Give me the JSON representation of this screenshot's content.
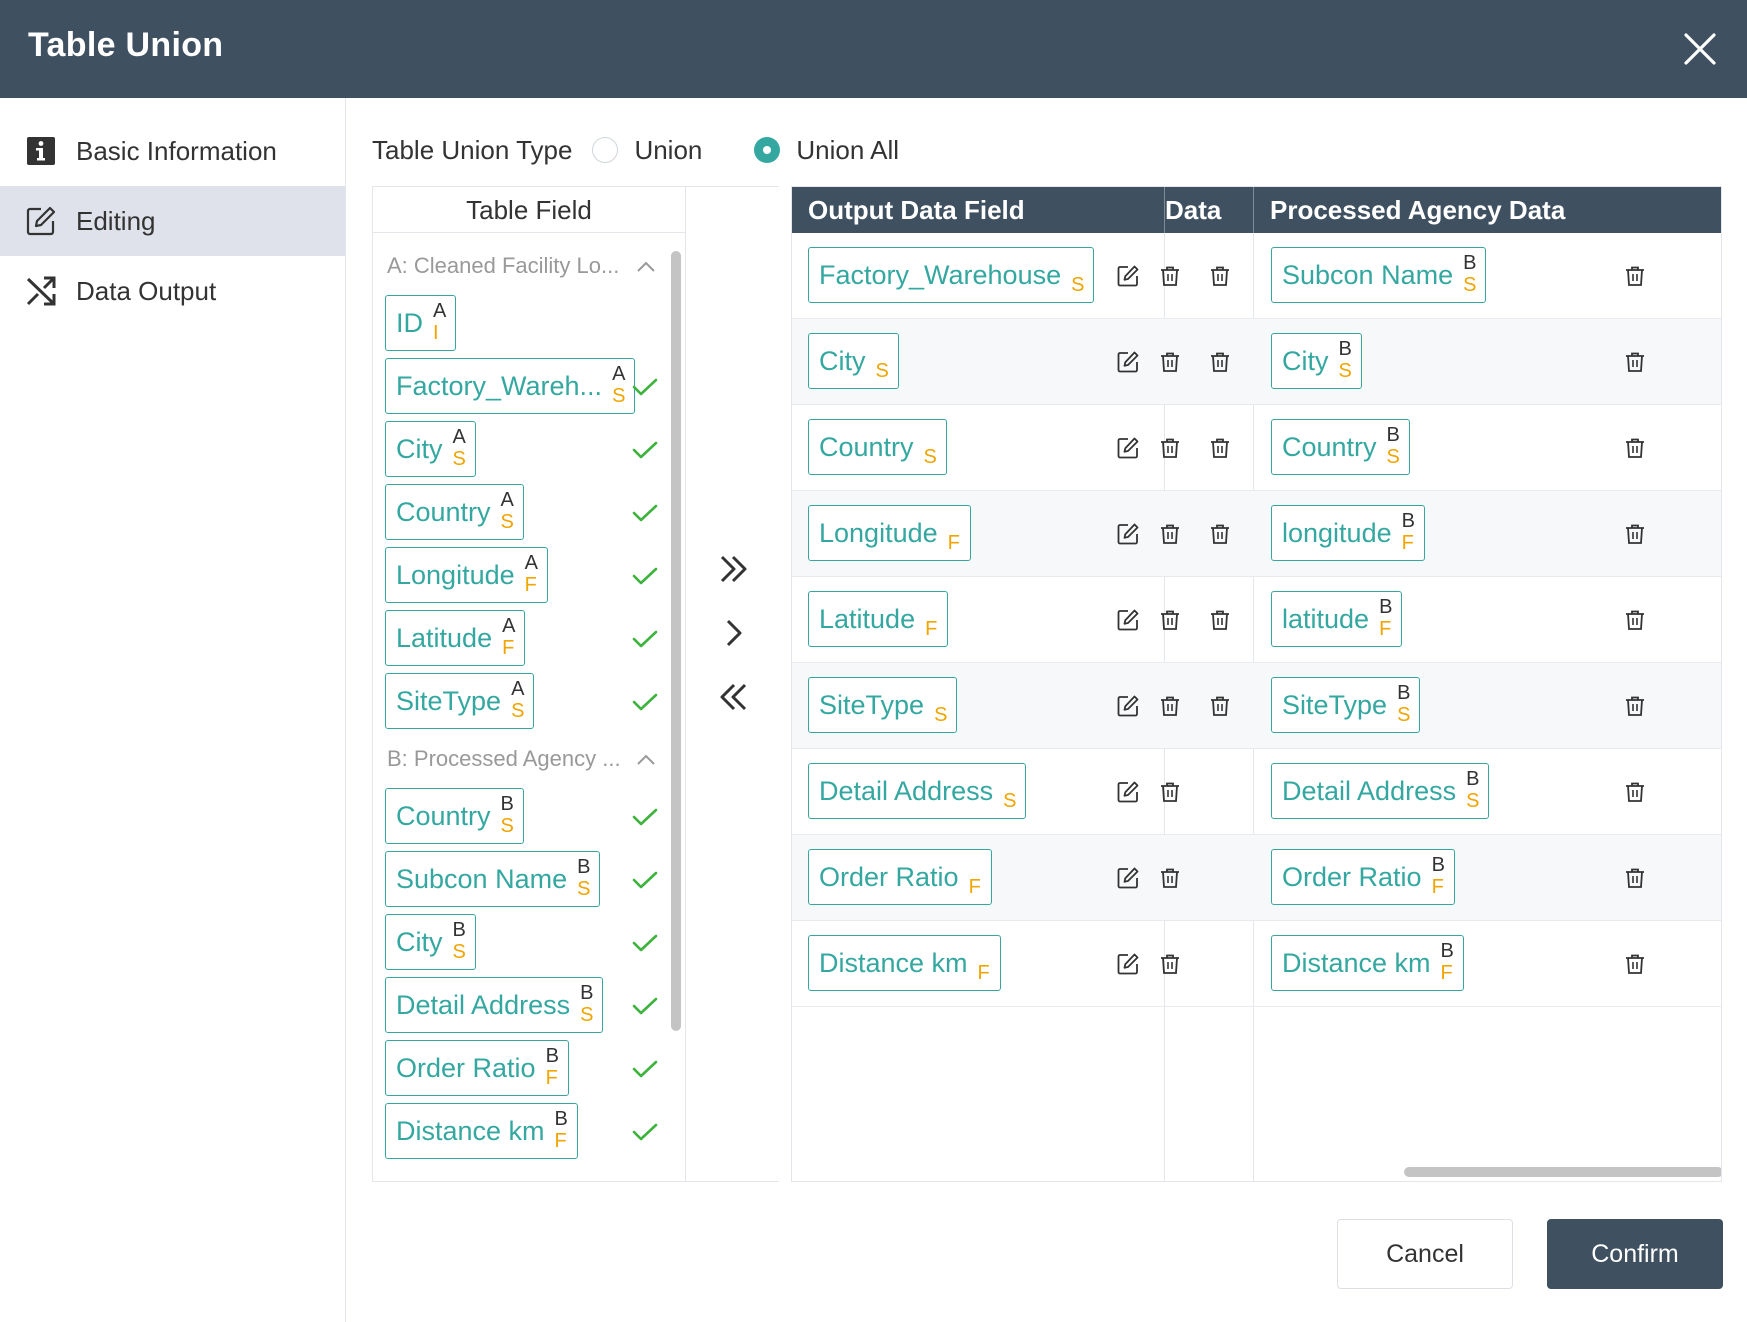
{
  "dialog": {
    "title": "Table Union",
    "close_icon": "close-icon"
  },
  "sidebar": {
    "items": [
      {
        "label": "Basic Information",
        "icon": "info-icon",
        "active": false
      },
      {
        "label": "Editing",
        "icon": "edit-icon",
        "active": true
      },
      {
        "label": "Data Output",
        "icon": "shuffle-icon",
        "active": false
      }
    ]
  },
  "union_type": {
    "label": "Table Union Type",
    "options": [
      {
        "label": "Union",
        "checked": false
      },
      {
        "label": "Union All",
        "checked": true
      }
    ]
  },
  "table_field": {
    "header": "Table Field",
    "groups": [
      {
        "title": "A: Cleaned Facility Lo...",
        "fields": [
          {
            "name": "ID",
            "src": "A",
            "type": "I",
            "checked": false
          },
          {
            "name": "Factory_Wareh...",
            "src": "A",
            "type": "S",
            "checked": true
          },
          {
            "name": "City",
            "src": "A",
            "type": "S",
            "checked": true
          },
          {
            "name": "Country",
            "src": "A",
            "type": "S",
            "checked": true
          },
          {
            "name": "Longitude",
            "src": "A",
            "type": "F",
            "checked": true
          },
          {
            "name": "Latitude",
            "src": "A",
            "type": "F",
            "checked": true
          },
          {
            "name": "SiteType",
            "src": "A",
            "type": "S",
            "checked": true
          }
        ]
      },
      {
        "title": "B: Processed Agency ...",
        "fields": [
          {
            "name": "Country",
            "src": "B",
            "type": "S",
            "checked": true
          },
          {
            "name": "Subcon Name",
            "src": "B",
            "type": "S",
            "checked": true
          },
          {
            "name": "City",
            "src": "B",
            "type": "S",
            "checked": true
          },
          {
            "name": "Detail Address",
            "src": "B",
            "type": "S",
            "checked": true
          },
          {
            "name": "Order Ratio",
            "src": "B",
            "type": "F",
            "checked": true
          },
          {
            "name": "Distance km",
            "src": "B",
            "type": "F",
            "checked": true
          }
        ]
      }
    ]
  },
  "move_buttons": [
    "move-all-right-icon",
    "move-right-icon",
    "move-all-left-icon"
  ],
  "output": {
    "headers": [
      "Output Data Field",
      "Data",
      "Processed Agency Data"
    ],
    "rows": [
      {
        "out": {
          "name": "Factory_Warehouse",
          "type": "S"
        },
        "mid_delete": true,
        "b": {
          "name": "Subcon Name",
          "src": "B",
          "type": "S"
        }
      },
      {
        "out": {
          "name": "City",
          "type": "S"
        },
        "mid_delete": true,
        "b": {
          "name": "City",
          "src": "B",
          "type": "S"
        }
      },
      {
        "out": {
          "name": "Country",
          "type": "S"
        },
        "mid_delete": true,
        "b": {
          "name": "Country",
          "src": "B",
          "type": "S"
        }
      },
      {
        "out": {
          "name": "Longitude",
          "type": "F"
        },
        "mid_delete": true,
        "b": {
          "name": "longitude",
          "src": "B",
          "type": "F"
        }
      },
      {
        "out": {
          "name": "Latitude",
          "type": "F"
        },
        "mid_delete": true,
        "b": {
          "name": "latitude",
          "src": "B",
          "type": "F"
        }
      },
      {
        "out": {
          "name": "SiteType",
          "type": "S"
        },
        "mid_delete": true,
        "b": {
          "name": "SiteType",
          "src": "B",
          "type": "S"
        }
      },
      {
        "out": {
          "name": "Detail Address",
          "type": "S"
        },
        "mid_delete": false,
        "b": {
          "name": "Detail Address",
          "src": "B",
          "type": "S"
        }
      },
      {
        "out": {
          "name": "Order Ratio",
          "type": "F"
        },
        "mid_delete": false,
        "b": {
          "name": "Order Ratio",
          "src": "B",
          "type": "F"
        }
      },
      {
        "out": {
          "name": "Distance km",
          "type": "F"
        },
        "mid_delete": false,
        "b": {
          "name": "Distance km",
          "src": "B",
          "type": "F"
        }
      }
    ]
  },
  "footer": {
    "cancel_label": "Cancel",
    "confirm_label": "Confirm"
  },
  "colors": {
    "header_bg": "#3f5060",
    "accent": "#34a8a0",
    "type_badge": "#f0a500",
    "check": "#3db33d"
  }
}
